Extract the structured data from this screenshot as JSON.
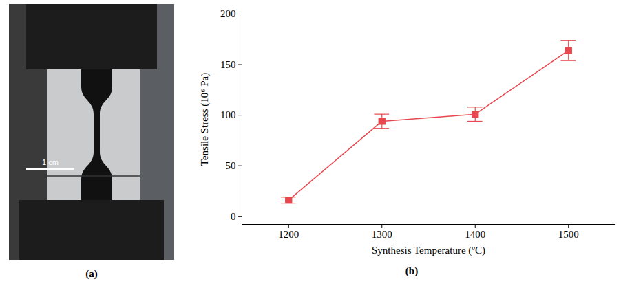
{
  "photo": {
    "label": "(a)",
    "scale_bar": "1 cm"
  },
  "chart_data": {
    "type": "line",
    "panel_label": "(b)",
    "x_label": "Synthesis Temperature (ºC)",
    "y_label": "Tensile Stress (10⁶ Pa)",
    "x": [
      1200,
      1300,
      1400,
      1500
    ],
    "values": [
      16,
      94,
      101,
      164
    ],
    "error": [
      3,
      7,
      7,
      10
    ],
    "color": "#e8474f",
    "marker": "square",
    "line_style": "solid",
    "xlim": [
      1150,
      1550
    ],
    "xticks": [
      1200,
      1300,
      1400,
      1500
    ],
    "ylim": [
      -8,
      200
    ],
    "yticks": [
      0,
      50,
      100,
      150,
      200
    ],
    "grid": false
  }
}
